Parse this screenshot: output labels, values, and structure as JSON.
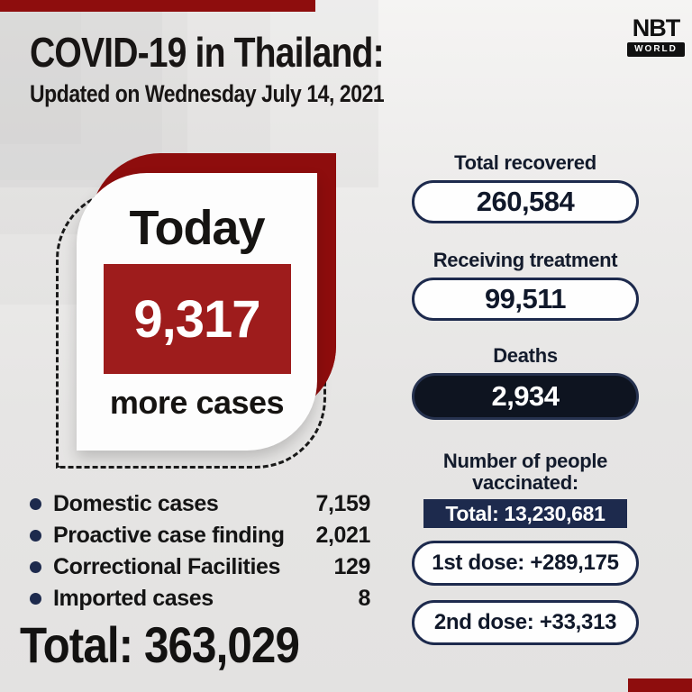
{
  "brand": {
    "name": "NBT",
    "sub": "WORLD"
  },
  "header": {
    "title": "COVID-19 in Thailand:",
    "subtitle": "Updated on Wednesday July 14, 2021"
  },
  "today_card": {
    "label": "Today",
    "count": "9,317",
    "caption": "more cases"
  },
  "stats": [
    {
      "label": "Total recovered",
      "value": "260,584",
      "style": "light"
    },
    {
      "label": "Receiving treatment",
      "value": "99,511",
      "style": "light"
    },
    {
      "label": "Deaths",
      "value": "2,934",
      "style": "dark"
    }
  ],
  "vaccination": {
    "heading": "Number of people vaccinated:",
    "total": "Total: 13,230,681",
    "doses": [
      "1st dose: +289,175",
      "2nd dose: +33,313"
    ]
  },
  "breakdown": {
    "items": [
      {
        "label": "Domestic cases",
        "value": "7,159"
      },
      {
        "label": "Proactive case finding",
        "value": "2,021"
      },
      {
        "label": "Correctional Facilities",
        "value": "129"
      },
      {
        "label": "Imported cases",
        "value": "8"
      }
    ],
    "total": "Total: 363,029"
  },
  "colors": {
    "red": "#8e0d0d",
    "red2": "#9e1c1c",
    "navy": "#1d2a4d",
    "dark-pill": "#0e1420",
    "ink": "#141414"
  },
  "chart_data": {
    "type": "table",
    "title": "COVID-19 in Thailand: Updated on Wednesday July 14, 2021",
    "rows": [
      {
        "metric": "New cases today",
        "value": 9317
      },
      {
        "metric": "Domestic cases",
        "value": 7159
      },
      {
        "metric": "Proactive case finding",
        "value": 2021
      },
      {
        "metric": "Correctional Facilities",
        "value": 129
      },
      {
        "metric": "Imported cases",
        "value": 8
      },
      {
        "metric": "Total cases",
        "value": 363029
      },
      {
        "metric": "Total recovered",
        "value": 260584
      },
      {
        "metric": "Receiving treatment",
        "value": 99511
      },
      {
        "metric": "Deaths",
        "value": 2934
      },
      {
        "metric": "Vaccinated total",
        "value": 13230681
      },
      {
        "metric": "1st dose new",
        "value": 289175
      },
      {
        "metric": "2nd dose new",
        "value": 33313
      }
    ]
  }
}
